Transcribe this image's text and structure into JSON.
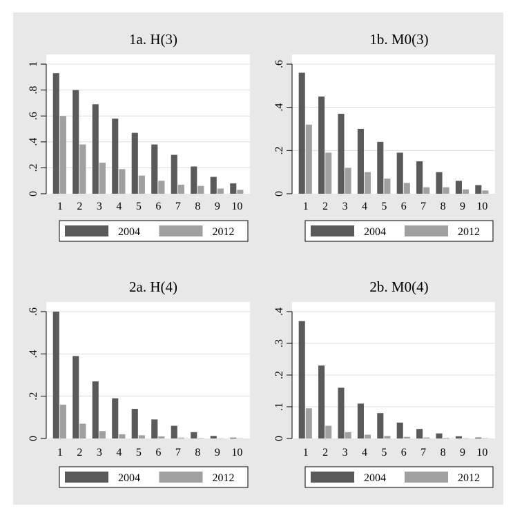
{
  "caption": "",
  "colors": {
    "series_2004": "#5a5a5a",
    "series_2012": "#a0a0a0",
    "background": "#e8e8e8",
    "plot_bg": "#ffffff",
    "grid": "#dcdcdc"
  },
  "chart_data": [
    {
      "type": "bar",
      "title": "1a. H(3)",
      "categories": [
        "1",
        "2",
        "3",
        "4",
        "5",
        "6",
        "7",
        "8",
        "9",
        "10"
      ],
      "series": [
        {
          "name": "2004",
          "values": [
            0.93,
            0.8,
            0.69,
            0.58,
            0.47,
            0.38,
            0.3,
            0.21,
            0.13,
            0.08
          ]
        },
        {
          "name": "2012",
          "values": [
            0.6,
            0.38,
            0.24,
            0.19,
            0.14,
            0.1,
            0.07,
            0.06,
            0.04,
            0.03
          ]
        }
      ],
      "ylim": [
        0,
        1
      ],
      "yticks": [
        0,
        0.2,
        0.4,
        0.6,
        0.8,
        1
      ],
      "ytick_labels": [
        "0",
        ".2",
        ".4",
        ".6",
        ".8",
        "1"
      ],
      "grid": true,
      "legend": "bottom"
    },
    {
      "type": "bar",
      "title": "1b. M0(3)",
      "categories": [
        "1",
        "2",
        "3",
        "4",
        "5",
        "6",
        "7",
        "8",
        "9",
        "10"
      ],
      "series": [
        {
          "name": "2004",
          "values": [
            0.56,
            0.45,
            0.37,
            0.3,
            0.24,
            0.19,
            0.15,
            0.1,
            0.06,
            0.04
          ]
        },
        {
          "name": "2012",
          "values": [
            0.32,
            0.19,
            0.12,
            0.1,
            0.07,
            0.05,
            0.03,
            0.03,
            0.02,
            0.015
          ]
        }
      ],
      "ylim": [
        0,
        0.6
      ],
      "yticks": [
        0,
        0.2,
        0.4,
        0.6
      ],
      "ytick_labels": [
        "0",
        ".2",
        ".4",
        ".6"
      ],
      "grid": true,
      "legend": "bottom"
    },
    {
      "type": "bar",
      "title": "2a. H(4)",
      "categories": [
        "1",
        "2",
        "3",
        "4",
        "5",
        "6",
        "7",
        "8",
        "9",
        "10"
      ],
      "series": [
        {
          "name": "2004",
          "values": [
            0.6,
            0.39,
            0.27,
            0.19,
            0.14,
            0.09,
            0.06,
            0.03,
            0.012,
            0.004
          ]
        },
        {
          "name": "2012",
          "values": [
            0.16,
            0.07,
            0.035,
            0.02,
            0.015,
            0.01,
            0.004,
            0.002,
            0.001,
            0.001
          ]
        }
      ],
      "ylim": [
        0,
        0.6
      ],
      "yticks": [
        0,
        0.2,
        0.4,
        0.6
      ],
      "ytick_labels": [
        "0",
        ".2",
        ".4",
        ".6"
      ],
      "grid": true,
      "legend": "bottom"
    },
    {
      "type": "bar",
      "title": "2b. M0(4)",
      "categories": [
        "1",
        "2",
        "3",
        "4",
        "5",
        "6",
        "7",
        "8",
        "9",
        "10"
      ],
      "series": [
        {
          "name": "2004",
          "values": [
            0.37,
            0.23,
            0.16,
            0.11,
            0.08,
            0.05,
            0.03,
            0.016,
            0.007,
            0.003
          ]
        },
        {
          "name": "2012",
          "values": [
            0.095,
            0.04,
            0.02,
            0.012,
            0.008,
            0.005,
            0.003,
            0.002,
            0.001,
            0.001
          ]
        }
      ],
      "ylim": [
        0,
        0.4
      ],
      "yticks": [
        0,
        0.1,
        0.2,
        0.3,
        0.4
      ],
      "ytick_labels": [
        "0",
        ".1",
        ".2",
        ".3",
        ".4"
      ],
      "grid": true,
      "legend": "bottom"
    }
  ]
}
